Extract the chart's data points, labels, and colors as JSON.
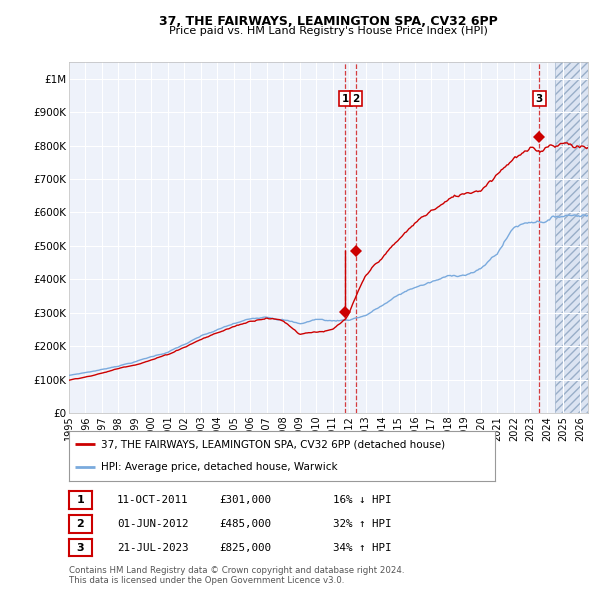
{
  "title1": "37, THE FAIRWAYS, LEAMINGTON SPA, CV32 6PP",
  "title2": "Price paid vs. HM Land Registry's House Price Index (HPI)",
  "ylabel_ticks": [
    "£0",
    "£100K",
    "£200K",
    "£300K",
    "£400K",
    "£500K",
    "£600K",
    "£700K",
    "£800K",
    "£900K",
    "£1M"
  ],
  "ytick_vals": [
    0,
    100000,
    200000,
    300000,
    400000,
    500000,
    600000,
    700000,
    800000,
    900000,
    1000000
  ],
  "ylim": [
    0,
    1050000
  ],
  "xlim_start": 1995.0,
  "xlim_end": 2026.5,
  "hpi_color": "#7aaadd",
  "price_color": "#cc0000",
  "sale1_date": 2011.78,
  "sale1_price": 301000,
  "sale2_date": 2012.42,
  "sale2_price": 485000,
  "sale3_date": 2023.55,
  "sale3_price": 825000,
  "legend_line1": "37, THE FAIRWAYS, LEAMINGTON SPA, CV32 6PP (detached house)",
  "legend_line2": "HPI: Average price, detached house, Warwick",
  "table_rows": [
    [
      "1",
      "11-OCT-2011",
      "£301,000",
      "16% ↓ HPI"
    ],
    [
      "2",
      "01-JUN-2012",
      "£485,000",
      "32% ↑ HPI"
    ],
    [
      "3",
      "21-JUL-2023",
      "£825,000",
      "34% ↑ HPI"
    ]
  ],
  "footnote1": "Contains HM Land Registry data © Crown copyright and database right 2024.",
  "footnote2": "This data is licensed under the Open Government Licence v3.0.",
  "background_color": "#ffffff",
  "plot_bg_color": "#eef2fa",
  "grid_color": "#ffffff",
  "shade_color": "#ccd8ec",
  "shade_start": 2024.5
}
